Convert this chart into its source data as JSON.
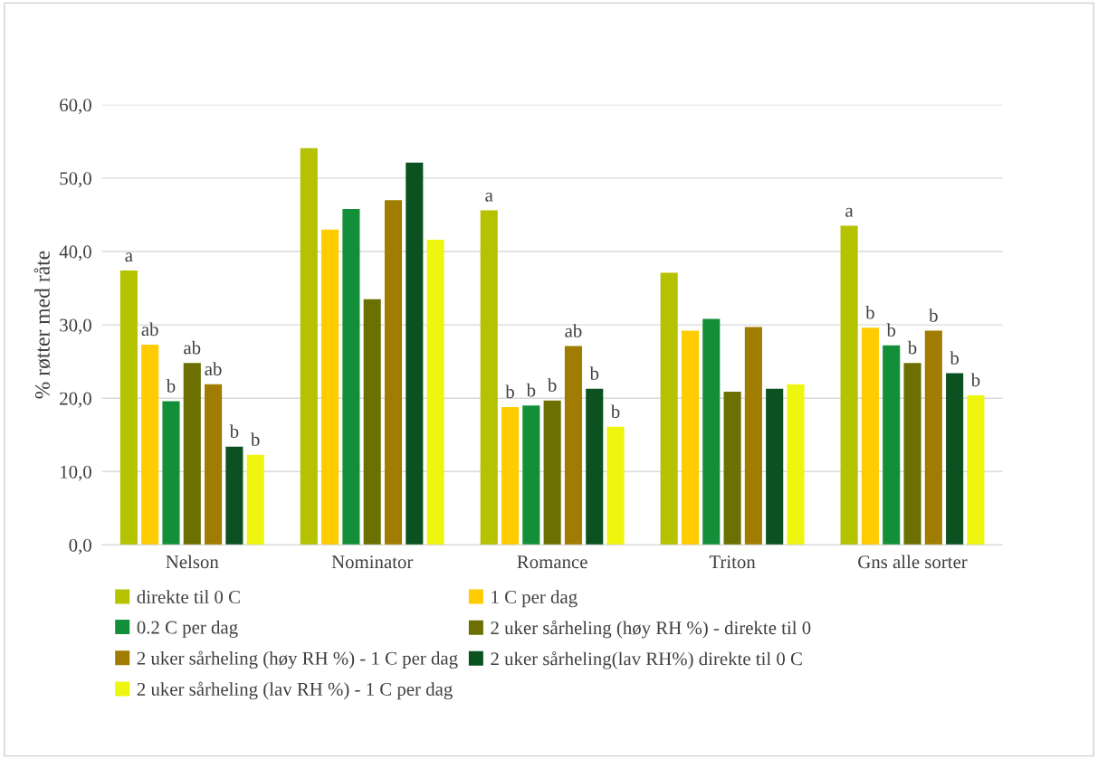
{
  "chart_data": {
    "type": "bar",
    "ylabel": "% røtter med råte",
    "categories": [
      "Nelson",
      "Nominator",
      "Romance",
      "Triton",
      "Gns alle sorter"
    ],
    "ylim": [
      0,
      60
    ],
    "yticks": [
      {
        "value": 0,
        "label": "0,0"
      },
      {
        "value": 10,
        "label": "10,0"
      },
      {
        "value": 20,
        "label": "20,0"
      },
      {
        "value": 30,
        "label": "30,0"
      },
      {
        "value": 40,
        "label": "40,0"
      },
      {
        "value": 50,
        "label": "50,0"
      },
      {
        "value": 60,
        "label": "60,0"
      }
    ],
    "grid": "y",
    "legend": "bottom",
    "series": [
      {
        "name": "direkte til 0 C",
        "color": "#b5c200",
        "values": [
          37.4,
          54.1,
          45.6,
          37.1,
          43.5
        ],
        "value_labels": [
          "a",
          null,
          "a",
          null,
          "a"
        ]
      },
      {
        "name": "1 C per dag",
        "color": "#ffcc00",
        "values": [
          27.3,
          43.0,
          18.8,
          29.2,
          29.6
        ],
        "value_labels": [
          "ab",
          null,
          "b",
          null,
          "b"
        ]
      },
      {
        "name": "0.2 C per dag",
        "color": "#138f3a",
        "values": [
          19.6,
          45.8,
          19.0,
          30.8,
          27.2
        ],
        "value_labels": [
          "b",
          null,
          "b",
          null,
          "b"
        ]
      },
      {
        "name": "2 uker sårheling (høy RH %) - direkte til 0",
        "color": "#6b7000",
        "values": [
          24.8,
          33.5,
          19.7,
          20.9,
          24.8
        ],
        "value_labels": [
          "ab",
          null,
          "b",
          null,
          "b"
        ]
      },
      {
        "name": "2 uker sårheling (høy RH %) - 1 C per dag",
        "color": "#a07c00",
        "values": [
          21.9,
          47.0,
          27.1,
          29.7,
          29.2
        ],
        "value_labels": [
          "ab",
          null,
          "ab",
          null,
          "b"
        ]
      },
      {
        "name": "2 uker sårheling(lav RH%) direkte til 0 C",
        "color": "#0b5220",
        "values": [
          13.4,
          52.1,
          21.3,
          21.3,
          23.4
        ],
        "value_labels": [
          "b",
          null,
          "b",
          null,
          "b"
        ]
      },
      {
        "name": "2 uker sårheling (lav RH %) - 1 C per dag",
        "color": "#eef50f",
        "values": [
          12.3,
          41.6,
          16.1,
          21.9,
          20.4
        ],
        "value_labels": [
          "b",
          null,
          "b",
          null,
          "b"
        ]
      }
    ]
  }
}
